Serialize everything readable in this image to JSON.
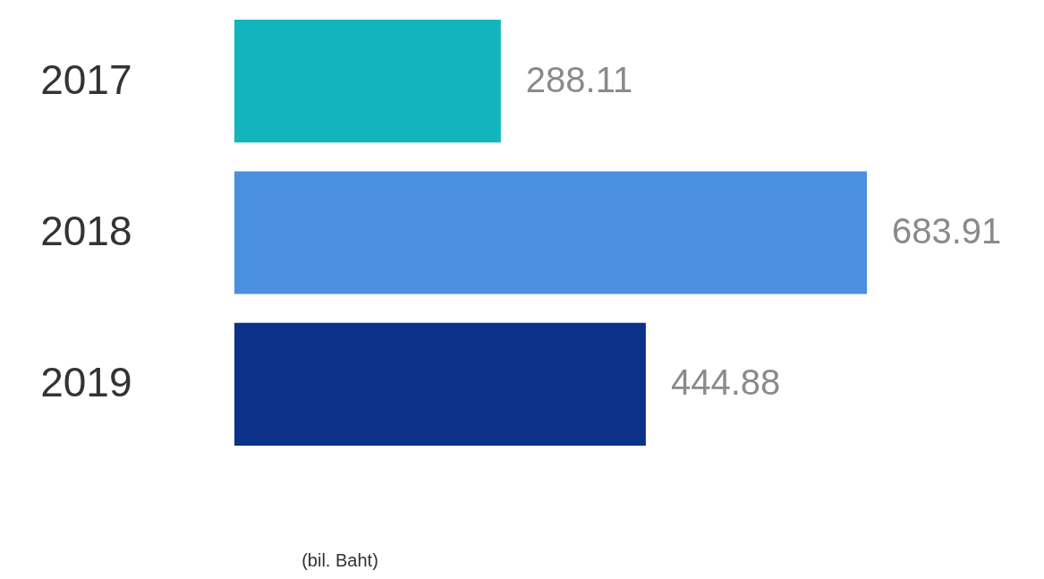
{
  "chart_data": {
    "type": "bar",
    "orientation": "horizontal",
    "categories": [
      "2017",
      "2018",
      "2019"
    ],
    "values": [
      288.11,
      683.91,
      444.88
    ],
    "colors": [
      "#13b5bd",
      "#4a8fe0",
      "#0b3287"
    ],
    "data_labels": true,
    "grid": false,
    "legend": false,
    "annotations": [
      "(bil. Baht)"
    ]
  }
}
